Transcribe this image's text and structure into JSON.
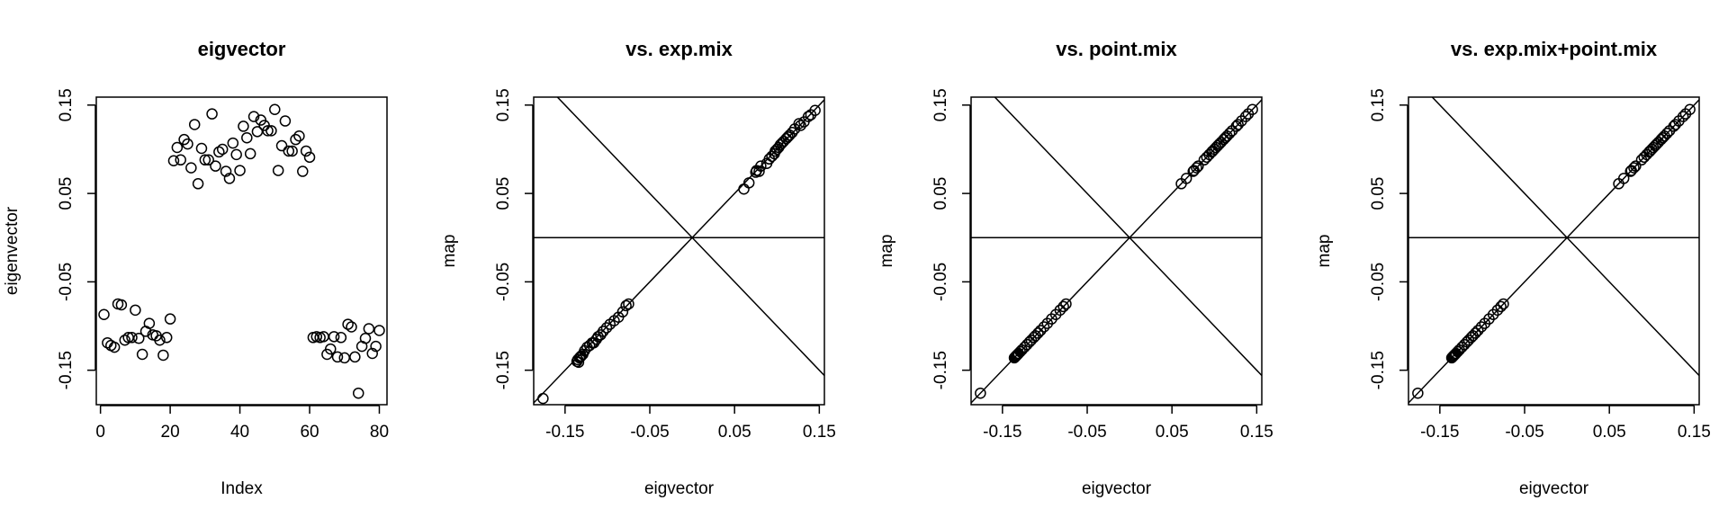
{
  "chart_data": [
    {
      "type": "scatter",
      "title": "eigvector",
      "xlabel": "Index",
      "ylabel": "eigenvector",
      "xlim": [
        -1.2,
        82.2
      ],
      "ylim": [
        -0.189,
        0.159
      ],
      "xticks": [
        0,
        20,
        40,
        60,
        80
      ],
      "xtick_labels": [
        "0",
        "20",
        "40",
        "60",
        "80"
      ],
      "yticks": [
        -0.15,
        -0.05,
        0.05,
        0.15
      ],
      "ytick_labels": [
        "-0.15",
        "-0.05",
        "0.05",
        "0.15"
      ],
      "reference_lines": [],
      "x": [
        1,
        2,
        3,
        4,
        5,
        6,
        7,
        8,
        9,
        10,
        11,
        12,
        13,
        14,
        15,
        16,
        17,
        18,
        19,
        20,
        21,
        22,
        23,
        24,
        25,
        26,
        27,
        28,
        29,
        30,
        31,
        32,
        33,
        34,
        35,
        36,
        37,
        38,
        39,
        40,
        41,
        42,
        43,
        44,
        45,
        46,
        47,
        48,
        49,
        50,
        51,
        52,
        53,
        54,
        55,
        56,
        57,
        58,
        59,
        60,
        61,
        62,
        63,
        64,
        65,
        66,
        67,
        68,
        69,
        70,
        71,
        72,
        73,
        74,
        75,
        76,
        77,
        78,
        79,
        80
      ],
      "y": [
        -0.087,
        -0.119,
        -0.122,
        -0.124,
        -0.075,
        -0.076,
        -0.116,
        -0.113,
        -0.113,
        -0.082,
        -0.114,
        -0.132,
        -0.106,
        -0.097,
        -0.11,
        -0.111,
        -0.116,
        -0.133,
        -0.113,
        -0.092,
        0.087,
        0.102,
        0.088,
        0.111,
        0.106,
        0.079,
        0.128,
        0.061,
        0.101,
        0.088,
        0.088,
        0.14,
        0.081,
        0.097,
        0.1,
        0.075,
        0.067,
        0.107,
        0.094,
        0.076,
        0.126,
        0.113,
        0.095,
        0.137,
        0.12,
        0.133,
        0.127,
        0.121,
        0.121,
        0.145,
        0.076,
        0.104,
        0.132,
        0.098,
        0.098,
        0.111,
        0.115,
        0.075,
        0.098,
        0.091,
        -0.113,
        -0.112,
        -0.113,
        -0.112,
        -0.132,
        -0.126,
        -0.112,
        -0.135,
        -0.113,
        -0.136,
        -0.098,
        -0.101,
        -0.135,
        -0.176,
        -0.123,
        -0.114,
        -0.103,
        -0.131,
        -0.123,
        -0.105
      ]
    },
    {
      "type": "scatter",
      "title": "vs. exp.mix",
      "xlabel": "eigvector",
      "ylabel": "map",
      "xlim": [
        -0.187,
        0.156
      ],
      "ylim": [
        -0.189,
        0.159
      ],
      "xticks": [
        -0.15,
        -0.05,
        0.05,
        0.15
      ],
      "xtick_labels": [
        "-0.15",
        "-0.05",
        "0.05",
        "0.15"
      ],
      "yticks": [
        -0.15,
        -0.05,
        0.05,
        0.15
      ],
      "ytick_labels": [
        "-0.15",
        "-0.05",
        "0.05",
        "0.15"
      ],
      "reference_lines": [
        {
          "intercept": 0,
          "slope": 1
        },
        {
          "intercept": 0,
          "slope": -1
        },
        {
          "intercept": 0,
          "slope": 0
        }
      ],
      "x": [
        -0.176,
        -0.136,
        -0.135,
        -0.134,
        -0.133,
        -0.132,
        -0.131,
        -0.129,
        -0.127,
        -0.124,
        -0.121,
        -0.118,
        -0.116,
        -0.113,
        -0.111,
        -0.108,
        -0.105,
        -0.101,
        -0.097,
        -0.092,
        -0.087,
        -0.082,
        -0.078,
        -0.075,
        0.061,
        0.067,
        0.075,
        0.076,
        0.079,
        0.081,
        0.088,
        0.091,
        0.094,
        0.097,
        0.098,
        0.1,
        0.102,
        0.104,
        0.106,
        0.108,
        0.111,
        0.113,
        0.115,
        0.118,
        0.121,
        0.126,
        0.128,
        0.132,
        0.137,
        0.14,
        0.145
      ],
      "y": [
        -0.182,
        -0.14,
        -0.138,
        -0.141,
        -0.136,
        -0.135,
        -0.134,
        -0.132,
        -0.128,
        -0.124,
        -0.122,
        -0.119,
        -0.119,
        -0.115,
        -0.112,
        -0.11,
        -0.106,
        -0.102,
        -0.098,
        -0.094,
        -0.09,
        -0.084,
        -0.077,
        -0.075,
        0.055,
        0.062,
        0.074,
        0.076,
        0.075,
        0.081,
        0.084,
        0.089,
        0.092,
        0.095,
        0.098,
        0.1,
        0.102,
        0.105,
        0.107,
        0.109,
        0.112,
        0.114,
        0.116,
        0.119,
        0.123,
        0.129,
        0.127,
        0.131,
        0.137,
        0.139,
        0.144
      ]
    },
    {
      "type": "scatter",
      "title": "vs. point.mix",
      "xlabel": "eigvector",
      "ylabel": "map",
      "xlim": [
        -0.187,
        0.156
      ],
      "ylim": [
        -0.189,
        0.159
      ],
      "xticks": [
        -0.15,
        -0.05,
        0.05,
        0.15
      ],
      "xtick_labels": [
        "-0.15",
        "-0.05",
        "0.05",
        "0.15"
      ],
      "yticks": [
        -0.15,
        -0.05,
        0.05,
        0.15
      ],
      "ytick_labels": [
        "-0.15",
        "-0.05",
        "0.05",
        "0.15"
      ],
      "reference_lines": [
        {
          "intercept": 0,
          "slope": 1
        },
        {
          "intercept": 0,
          "slope": -1
        },
        {
          "intercept": 0,
          "slope": 0
        }
      ],
      "x": [
        -0.176,
        -0.136,
        -0.135,
        -0.134,
        -0.133,
        -0.132,
        -0.131,
        -0.129,
        -0.127,
        -0.124,
        -0.121,
        -0.118,
        -0.116,
        -0.113,
        -0.111,
        -0.108,
        -0.105,
        -0.101,
        -0.097,
        -0.092,
        -0.087,
        -0.082,
        -0.078,
        -0.075,
        0.061,
        0.067,
        0.075,
        0.076,
        0.079,
        0.081,
        0.088,
        0.091,
        0.094,
        0.097,
        0.098,
        0.1,
        0.102,
        0.104,
        0.106,
        0.108,
        0.111,
        0.113,
        0.115,
        0.118,
        0.121,
        0.126,
        0.128,
        0.132,
        0.137,
        0.14,
        0.145
      ],
      "y": [
        -0.176,
        -0.136,
        -0.135,
        -0.134,
        -0.133,
        -0.132,
        -0.131,
        -0.129,
        -0.127,
        -0.124,
        -0.121,
        -0.118,
        -0.116,
        -0.113,
        -0.111,
        -0.108,
        -0.105,
        -0.101,
        -0.097,
        -0.092,
        -0.087,
        -0.082,
        -0.078,
        -0.075,
        0.061,
        0.067,
        0.075,
        0.076,
        0.079,
        0.081,
        0.088,
        0.091,
        0.094,
        0.097,
        0.098,
        0.1,
        0.102,
        0.104,
        0.106,
        0.108,
        0.111,
        0.113,
        0.115,
        0.118,
        0.121,
        0.126,
        0.128,
        0.132,
        0.137,
        0.14,
        0.145
      ]
    },
    {
      "type": "scatter",
      "title": "vs. exp.mix+point.mix",
      "xlabel": "eigvector",
      "ylabel": "map",
      "xlim": [
        -0.187,
        0.156
      ],
      "ylim": [
        -0.189,
        0.159
      ],
      "xticks": [
        -0.15,
        -0.05,
        0.05,
        0.15
      ],
      "xtick_labels": [
        "-0.15",
        "-0.05",
        "0.05",
        "0.15"
      ],
      "yticks": [
        -0.15,
        -0.05,
        0.05,
        0.15
      ],
      "ytick_labels": [
        "-0.15",
        "-0.05",
        "0.05",
        "0.15"
      ],
      "reference_lines": [
        {
          "intercept": 0,
          "slope": 1
        },
        {
          "intercept": 0,
          "slope": -1
        },
        {
          "intercept": 0,
          "slope": 0
        }
      ],
      "x": [
        -0.176,
        -0.136,
        -0.135,
        -0.134,
        -0.133,
        -0.132,
        -0.131,
        -0.129,
        -0.127,
        -0.124,
        -0.121,
        -0.118,
        -0.116,
        -0.113,
        -0.111,
        -0.108,
        -0.105,
        -0.101,
        -0.097,
        -0.092,
        -0.087,
        -0.082,
        -0.078,
        -0.075,
        0.061,
        0.067,
        0.075,
        0.076,
        0.079,
        0.081,
        0.088,
        0.091,
        0.094,
        0.097,
        0.098,
        0.1,
        0.102,
        0.104,
        0.106,
        0.108,
        0.111,
        0.113,
        0.115,
        0.118,
        0.121,
        0.126,
        0.128,
        0.132,
        0.137,
        0.14,
        0.145
      ],
      "y": [
        -0.176,
        -0.136,
        -0.135,
        -0.134,
        -0.133,
        -0.132,
        -0.131,
        -0.129,
        -0.127,
        -0.124,
        -0.121,
        -0.118,
        -0.116,
        -0.113,
        -0.111,
        -0.108,
        -0.105,
        -0.101,
        -0.097,
        -0.092,
        -0.087,
        -0.082,
        -0.078,
        -0.075,
        0.061,
        0.067,
        0.075,
        0.076,
        0.079,
        0.081,
        0.088,
        0.091,
        0.094,
        0.097,
        0.098,
        0.1,
        0.102,
        0.104,
        0.106,
        0.108,
        0.111,
        0.113,
        0.115,
        0.118,
        0.121,
        0.126,
        0.128,
        0.132,
        0.137,
        0.14,
        0.145
      ]
    }
  ]
}
